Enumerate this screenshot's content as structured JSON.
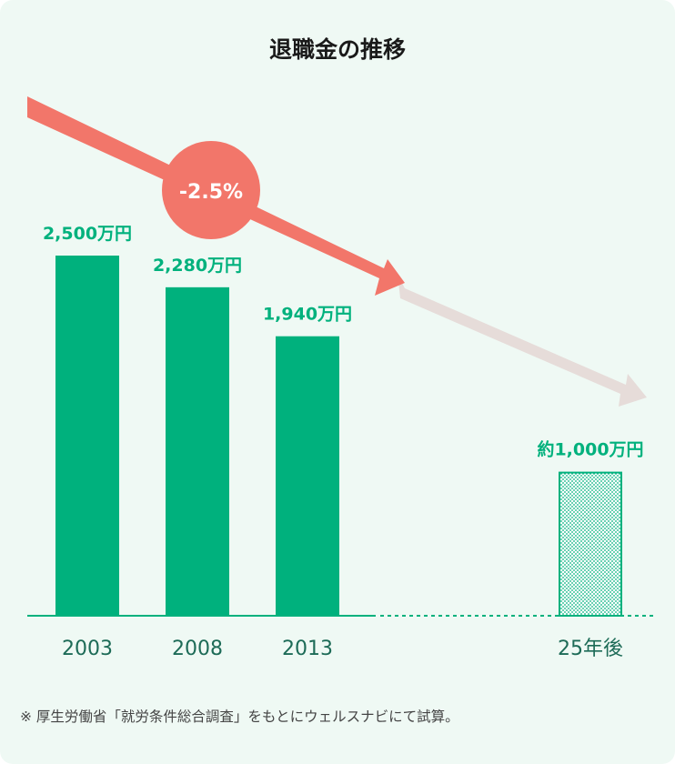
{
  "colors": {
    "background": "#eff9f4",
    "bar": "#00b17d",
    "axis": "#00b17d",
    "trend_arrow": "#f2766a",
    "projection_arrow": "#e6dcd9",
    "badge": "#f2766a",
    "label_text": "#00b17d",
    "tick_text": "#1d6b57"
  },
  "chart_data": {
    "type": "bar",
    "title": "退職金の推移",
    "categories": [
      "2003",
      "2008",
      "2013",
      "25年後"
    ],
    "values": [
      2500,
      2280,
      1940,
      1000
    ],
    "value_labels": [
      "2,500万円",
      "2,280万円",
      "1,940万円",
      "約1,000万円"
    ],
    "projected": [
      false,
      false,
      false,
      true
    ],
    "ylim": [
      0,
      2500
    ],
    "grid": false,
    "trend_label": "-2.5%",
    "note": "※ 厚生労働省「就労条件総合調査」をもとにウェルスナビにて試算。"
  }
}
